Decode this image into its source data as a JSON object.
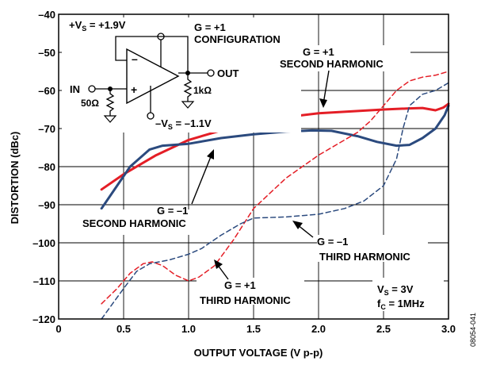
{
  "chart_data": {
    "type": "line",
    "xlabel": "OUTPUT VOLTAGE (V p-p)",
    "ylabel": "DISTORTION (dBc)",
    "xlim": [
      0,
      3.0
    ],
    "ylim": [
      -120,
      -40
    ],
    "x_ticks": [
      0,
      0.5,
      1.0,
      1.5,
      2.0,
      2.5,
      3.0
    ],
    "x_tick_labels": [
      "0",
      "0.5",
      "1.0",
      "1.5",
      "2.0",
      "2.5",
      "3.0"
    ],
    "y_ticks": [
      -120,
      -110,
      -100,
      -90,
      -80,
      -70,
      -60,
      -50,
      -40
    ],
    "y_tick_labels": [
      "–120",
      "–110",
      "–100",
      "–90",
      "–80",
      "–70",
      "–60",
      "–50",
      "–40"
    ],
    "grid": true,
    "legend": "none",
    "series": [
      {
        "color": "#e41e26",
        "dash": "solid",
        "points": [
          [
            0.33,
            -86
          ],
          [
            0.5,
            -82
          ],
          [
            0.75,
            -77
          ],
          [
            1.0,
            -73
          ],
          [
            1.25,
            -70.5
          ],
          [
            1.5,
            -68
          ],
          [
            1.75,
            -67
          ],
          [
            2.0,
            -66
          ],
          [
            2.25,
            -65.5
          ],
          [
            2.5,
            -65
          ],
          [
            2.7,
            -64.7
          ],
          [
            2.8,
            -64.6
          ],
          [
            2.9,
            -65.2
          ],
          [
            2.96,
            -64.5
          ],
          [
            3.0,
            -63.5
          ]
        ]
      },
      {
        "color": "#2b4a7e",
        "dash": "solid",
        "points": [
          [
            0.33,
            -91
          ],
          [
            0.45,
            -85
          ],
          [
            0.55,
            -80
          ],
          [
            0.7,
            -75.5
          ],
          [
            0.8,
            -74.5
          ],
          [
            1.0,
            -74
          ],
          [
            1.25,
            -72.5
          ],
          [
            1.5,
            -71.5
          ],
          [
            1.75,
            -70.8
          ],
          [
            1.95,
            -70.5
          ],
          [
            2.1,
            -70.6
          ],
          [
            2.3,
            -72
          ],
          [
            2.45,
            -73.5
          ],
          [
            2.6,
            -74.5
          ],
          [
            2.7,
            -74.3
          ],
          [
            2.8,
            -72.5
          ],
          [
            2.9,
            -70
          ],
          [
            2.97,
            -66.5
          ],
          [
            3.0,
            -64
          ]
        ]
      },
      {
        "color": "#e41e26",
        "dash": "dashed",
        "points": [
          [
            0.33,
            -116
          ],
          [
            0.45,
            -112
          ],
          [
            0.55,
            -108
          ],
          [
            0.65,
            -105.5
          ],
          [
            0.72,
            -105
          ],
          [
            0.8,
            -106
          ],
          [
            0.9,
            -108.5
          ],
          [
            1.0,
            -110
          ],
          [
            1.08,
            -109
          ],
          [
            1.2,
            -106
          ],
          [
            1.35,
            -99
          ],
          [
            1.5,
            -91
          ],
          [
            1.75,
            -83
          ],
          [
            2.0,
            -77
          ],
          [
            2.2,
            -73
          ],
          [
            2.3,
            -71
          ],
          [
            2.4,
            -68
          ],
          [
            2.5,
            -64
          ],
          [
            2.6,
            -60
          ],
          [
            2.7,
            -57.5
          ],
          [
            2.8,
            -56.5
          ],
          [
            2.9,
            -56
          ],
          [
            3.0,
            -55
          ]
        ]
      },
      {
        "color": "#2b4a7e",
        "dash": "dashed",
        "points": [
          [
            0.33,
            -120
          ],
          [
            0.5,
            -112
          ],
          [
            0.6,
            -107.5
          ],
          [
            0.7,
            -105.5
          ],
          [
            0.85,
            -104.5
          ],
          [
            1.0,
            -103
          ],
          [
            1.1,
            -101.5
          ],
          [
            1.25,
            -98
          ],
          [
            1.4,
            -95
          ],
          [
            1.5,
            -93.5
          ],
          [
            1.75,
            -93.2
          ],
          [
            2.0,
            -92.5
          ],
          [
            2.2,
            -91
          ],
          [
            2.35,
            -89
          ],
          [
            2.5,
            -85
          ],
          [
            2.6,
            -78
          ],
          [
            2.65,
            -70
          ],
          [
            2.7,
            -64
          ],
          [
            2.8,
            -61
          ],
          [
            2.9,
            -60
          ],
          [
            3.0,
            -58
          ]
        ]
      }
    ],
    "annotations": [
      {
        "line1": "G = +1",
        "line2": "SECOND HARMONIC"
      },
      {
        "line1": "G = –1",
        "line2": "SECOND HARMONIC"
      },
      {
        "line1": "G = –1",
        "line2": "THIRD HARMONIC"
      },
      {
        "line1": "G = +1",
        "line2": "THIRD HARMONIC"
      }
    ],
    "conditions": [
      "V",
      "S",
      " = 3V",
      "f",
      "C",
      " = 1MHz"
    ],
    "figure_code": "08054-041"
  },
  "schematic": {
    "vs_pos": [
      "+V",
      "S",
      " = +1.9V"
    ],
    "vs_neg": [
      "–V",
      "S",
      " = –1.1V"
    ],
    "config": [
      "G = +1",
      "CONFIGURATION"
    ],
    "in_label": "IN",
    "out_label": "OUT",
    "r_in": "50Ω",
    "r_load": "1kΩ",
    "minus_sign": "–",
    "plus_sign": "+"
  }
}
